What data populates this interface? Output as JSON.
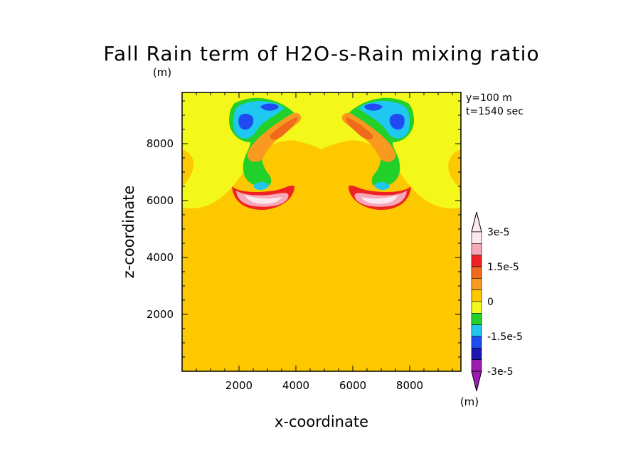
{
  "chart_data": {
    "type": "heatmap",
    "title": "Fall Rain term of H2O-s-Rain mixing ratio",
    "title_unit": "(m)",
    "xlabel": "x-coordinate",
    "ylabel": "z-coordinate",
    "xlim": [
      0,
      9800
    ],
    "ylim": [
      0,
      9800
    ],
    "x_ticks": [
      2000,
      4000,
      6000,
      8000
    ],
    "y_ticks": [
      2000,
      4000,
      6000,
      8000
    ],
    "info_lines": [
      "y=100 m",
      "t=1540 sec"
    ],
    "colorbar": {
      "unit_label": "(m)",
      "tick_labels": [
        "3e-5",
        "1.5e-5",
        "0",
        "-1.5e-5",
        "-3e-5"
      ],
      "levels_top_to_bottom": [
        {
          "value": 3e-05,
          "color": "#fde8f0"
        },
        {
          "value": 2.5e-05,
          "color": "#f7a8b8"
        },
        {
          "value": 2e-05,
          "color": "#ee2222"
        },
        {
          "value": 1.5e-05,
          "color": "#f06a1c"
        },
        {
          "value": 1e-05,
          "color": "#f89a20"
        },
        {
          "value": 5e-06,
          "color": "#fdc800"
        },
        {
          "value": 0,
          "color": "#f4f81a"
        },
        {
          "value": -5e-06,
          "color": "#22d02a"
        },
        {
          "value": -1e-05,
          "color": "#1ec8f0"
        },
        {
          "value": -1.5e-05,
          "color": "#1e4cf0"
        },
        {
          "value": -2e-05,
          "color": "#1a18b0"
        },
        {
          "value": -2.5e-05,
          "color": "#9a1cb0"
        }
      ]
    },
    "background_value_color": "#fdc800",
    "grid": false
  }
}
